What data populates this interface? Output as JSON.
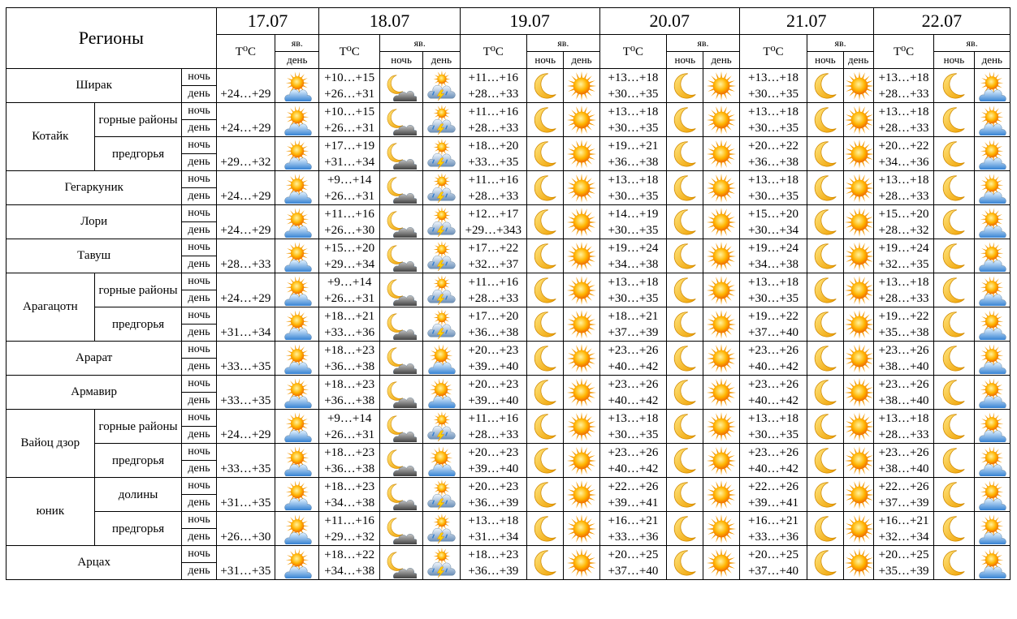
{
  "header": {
    "regions_label": "Регионы",
    "temp_label": "T⁰C",
    "phenomena_label": "яв.",
    "night_label": "ночь",
    "day_label": "день"
  },
  "dates": [
    "17.07",
    "18.07",
    "19.07",
    "20.07",
    "21.07",
    "22.07"
  ],
  "rows": [
    {
      "region": "Ширак",
      "sub": "",
      "day1": {
        "day": "+24…+29",
        "icon": "sun-cloud-icon"
      },
      "days": [
        {
          "night": "+10…+15",
          "day": "+26…+31",
          "night_icon": "moon-cloud-icon",
          "day_icon": "thunderstorm-icon"
        },
        {
          "night": "+11…+16",
          "day": "+28…+33",
          "night_icon": "moon-icon",
          "day_icon": "sun-icon"
        },
        {
          "night": "+13…+18",
          "day": "+30…+35",
          "night_icon": "moon-icon",
          "day_icon": "sun-icon"
        },
        {
          "night": "+13…+18",
          "day": "+30…+35",
          "night_icon": "moon-icon",
          "day_icon": "sun-icon"
        },
        {
          "night": "+13…+18",
          "day": "+28…+33",
          "night_icon": "moon-icon",
          "day_icon": "sun-cloud-icon"
        }
      ]
    },
    {
      "region": "Котайк",
      "sub": "горные районы",
      "day1": {
        "day": "+24…+29",
        "icon": "sun-cloud-icon"
      },
      "days": [
        {
          "night": "+10…+15",
          "day": "+26…+31",
          "night_icon": "moon-cloud-icon",
          "day_icon": "thunderstorm-icon"
        },
        {
          "night": "+11…+16",
          "day": "+28…+33",
          "night_icon": "moon-icon",
          "day_icon": "sun-icon"
        },
        {
          "night": "+13…+18",
          "day": "+30…+35",
          "night_icon": "moon-icon",
          "day_icon": "sun-icon"
        },
        {
          "night": "+13…+18",
          "day": "+30…+35",
          "night_icon": "moon-icon",
          "day_icon": "sun-icon"
        },
        {
          "night": "+13…+18",
          "day": "+28…+33",
          "night_icon": "moon-icon",
          "day_icon": "sun-cloud-icon"
        }
      ]
    },
    {
      "region": "",
      "sub": "предгорья",
      "day1": {
        "day": "+29…+32",
        "icon": "sun-cloud-icon"
      },
      "days": [
        {
          "night": "+17…+19",
          "day": "+31…+34",
          "night_icon": "moon-cloud-icon",
          "day_icon": "thunderstorm-icon"
        },
        {
          "night": "+18…+20",
          "day": "+33…+35",
          "night_icon": "moon-icon",
          "day_icon": "sun-icon"
        },
        {
          "night": "+19…+21",
          "day": "+36…+38",
          "night_icon": "moon-icon",
          "day_icon": "sun-icon"
        },
        {
          "night": "+20…+22",
          "day": "+36…+38",
          "night_icon": "moon-icon",
          "day_icon": "sun-icon"
        },
        {
          "night": "+20…+22",
          "day": "+34…+36",
          "night_icon": "moon-icon",
          "day_icon": "sun-cloud-icon"
        }
      ]
    },
    {
      "region": "Гегаркуник",
      "sub": "",
      "day1": {
        "day": "+24…+29",
        "icon": "sun-cloud-icon"
      },
      "days": [
        {
          "night": "+9…+14",
          "day": "+26…+31",
          "night_icon": "moon-cloud-icon",
          "day_icon": "thunderstorm-icon"
        },
        {
          "night": "+11…+16",
          "day": "+28…+33",
          "night_icon": "moon-icon",
          "day_icon": "sun-icon"
        },
        {
          "night": "+13…+18",
          "day": "+30…+35",
          "night_icon": "moon-icon",
          "day_icon": "sun-icon"
        },
        {
          "night": "+13…+18",
          "day": "+30…+35",
          "night_icon": "moon-icon",
          "day_icon": "sun-icon"
        },
        {
          "night": "+13…+18",
          "day": "+28…+33",
          "night_icon": "moon-icon",
          "day_icon": "sun-cloud-icon"
        }
      ]
    },
    {
      "region": "Лори",
      "sub": "",
      "day1": {
        "day": "+24…+29",
        "icon": "sun-cloud-icon"
      },
      "days": [
        {
          "night": "+11…+16",
          "day": "+26…+30",
          "night_icon": "moon-cloud-icon",
          "day_icon": "thunderstorm-icon"
        },
        {
          "night": "+12…+17",
          "day": "+29…+343",
          "night_icon": "moon-icon",
          "day_icon": "sun-icon"
        },
        {
          "night": "+14…+19",
          "day": "+30…+35",
          "night_icon": "moon-icon",
          "day_icon": "sun-icon"
        },
        {
          "night": "+15…+20",
          "day": "+30…+34",
          "night_icon": "moon-icon",
          "day_icon": "sun-icon"
        },
        {
          "night": "+15…+20",
          "day": "+28…+32",
          "night_icon": "moon-icon",
          "day_icon": "sun-cloud-icon"
        }
      ]
    },
    {
      "region": "Тавуш",
      "sub": "",
      "day1": {
        "day": "+28…+33",
        "icon": "sun-cloud-icon"
      },
      "days": [
        {
          "night": "+15…+20",
          "day": "+29…+34",
          "night_icon": "moon-cloud-icon",
          "day_icon": "thunderstorm-icon"
        },
        {
          "night": "+17…+22",
          "day": "+32…+37",
          "night_icon": "moon-icon",
          "day_icon": "sun-icon"
        },
        {
          "night": "+19…+24",
          "day": "+34…+38",
          "night_icon": "moon-icon",
          "day_icon": "sun-icon"
        },
        {
          "night": "+19…+24",
          "day": "+34…+38",
          "night_icon": "moon-icon",
          "day_icon": "sun-icon"
        },
        {
          "night": "+19…+24",
          "day": "+32…+35",
          "night_icon": "moon-icon",
          "day_icon": "sun-cloud-icon"
        }
      ]
    },
    {
      "region": "Арагацотн",
      "sub": "горные районы",
      "day1": {
        "day": "+24…+29",
        "icon": "sun-cloud-icon"
      },
      "days": [
        {
          "night": "+9…+14",
          "day": "+26…+31",
          "night_icon": "moon-cloud-icon",
          "day_icon": "thunderstorm-icon"
        },
        {
          "night": "+11…+16",
          "day": "+28…+33",
          "night_icon": "moon-icon",
          "day_icon": "sun-icon"
        },
        {
          "night": "+13…+18",
          "day": "+30…+35",
          "night_icon": "moon-icon",
          "day_icon": "sun-icon"
        },
        {
          "night": "+13…+18",
          "day": "+30…+35",
          "night_icon": "moon-icon",
          "day_icon": "sun-icon"
        },
        {
          "night": "+13…+18",
          "day": "+28…+33",
          "night_icon": "moon-icon",
          "day_icon": "sun-cloud-icon"
        }
      ]
    },
    {
      "region": "",
      "sub": "предгорья",
      "day1": {
        "day": "+31…+34",
        "icon": "sun-cloud-icon"
      },
      "days": [
        {
          "night": "+18…+21",
          "day": "+33…+36",
          "night_icon": "moon-cloud-icon",
          "day_icon": "thunderstorm-icon"
        },
        {
          "night": "+17…+20",
          "day": "+36…+38",
          "night_icon": "moon-icon",
          "day_icon": "sun-icon"
        },
        {
          "night": "+18…+21",
          "day": "+37…+39",
          "night_icon": "moon-icon",
          "day_icon": "sun-icon"
        },
        {
          "night": "+19…+22",
          "day": "+37…+40",
          "night_icon": "moon-icon",
          "day_icon": "sun-icon"
        },
        {
          "night": "+19…+22",
          "day": "+35…+38",
          "night_icon": "moon-icon",
          "day_icon": "sun-cloud-icon"
        }
      ]
    },
    {
      "region": "Арарат",
      "sub": "",
      "day1": {
        "day": "+33…+35",
        "icon": "sun-cloud-icon"
      },
      "days": [
        {
          "night": "+18…+23",
          "day": "+36…+38",
          "night_icon": "moon-cloud-icon",
          "day_icon": "sun-cloud-icon"
        },
        {
          "night": "+20…+23",
          "day": "+39…+40",
          "night_icon": "moon-icon",
          "day_icon": "sun-icon"
        },
        {
          "night": "+23…+26",
          "day": "+40…+42",
          "night_icon": "moon-icon",
          "day_icon": "sun-icon"
        },
        {
          "night": "+23…+26",
          "day": "+40…+42",
          "night_icon": "moon-icon",
          "day_icon": "sun-icon"
        },
        {
          "night": "+23…+26",
          "day": "+38…+40",
          "night_icon": "moon-icon",
          "day_icon": "sun-cloud-icon"
        }
      ]
    },
    {
      "region": "Армавир",
      "sub": "",
      "day1": {
        "day": "+33…+35",
        "icon": "sun-cloud-icon"
      },
      "days": [
        {
          "night": "+18…+23",
          "day": "+36…+38",
          "night_icon": "moon-cloud-icon",
          "day_icon": "sun-cloud-icon"
        },
        {
          "night": "+20…+23",
          "day": "+39…+40",
          "night_icon": "moon-icon",
          "day_icon": "sun-icon"
        },
        {
          "night": "+23…+26",
          "day": "+40…+42",
          "night_icon": "moon-icon",
          "day_icon": "sun-icon"
        },
        {
          "night": "+23…+26",
          "day": "+40…+42",
          "night_icon": "moon-icon",
          "day_icon": "sun-icon"
        },
        {
          "night": "+23…+26",
          "day": "+38…+40",
          "night_icon": "moon-icon",
          "day_icon": "sun-cloud-icon"
        }
      ]
    },
    {
      "region": "Вайоц дзор",
      "sub": "горные районы",
      "day1": {
        "day": "+24…+29",
        "icon": "sun-cloud-icon"
      },
      "days": [
        {
          "night": "+9…+14",
          "day": "+26…+31",
          "night_icon": "moon-cloud-icon",
          "day_icon": "thunderstorm-icon"
        },
        {
          "night": "+11…+16",
          "day": "+28…+33",
          "night_icon": "moon-icon",
          "day_icon": "sun-icon"
        },
        {
          "night": "+13…+18",
          "day": "+30…+35",
          "night_icon": "moon-icon",
          "day_icon": "sun-icon"
        },
        {
          "night": "+13…+18",
          "day": "+30…+35",
          "night_icon": "moon-icon",
          "day_icon": "sun-icon"
        },
        {
          "night": "+13…+18",
          "day": "+28…+33",
          "night_icon": "moon-icon",
          "day_icon": "sun-cloud-icon"
        }
      ]
    },
    {
      "region": "",
      "sub": "предгорья",
      "day1": {
        "day": "+33…+35",
        "icon": "sun-cloud-icon"
      },
      "days": [
        {
          "night": "+18…+23",
          "day": "+36…+38",
          "night_icon": "moon-cloud-icon",
          "day_icon": "sun-cloud-icon"
        },
        {
          "night": "+20…+23",
          "day": "+39…+40",
          "night_icon": "moon-icon",
          "day_icon": "sun-icon"
        },
        {
          "night": "+23…+26",
          "day": "+40…+42",
          "night_icon": "moon-icon",
          "day_icon": "sun-icon"
        },
        {
          "night": "+23…+26",
          "day": "+40…+42",
          "night_icon": "moon-icon",
          "day_icon": "sun-icon"
        },
        {
          "night": "+23…+26",
          "day": "+38…+40",
          "night_icon": "moon-icon",
          "day_icon": "sun-cloud-icon"
        }
      ]
    },
    {
      "region": "юник",
      "sub": "долины",
      "day1": {
        "day": "+31…+35",
        "icon": "sun-cloud-icon"
      },
      "days": [
        {
          "night": "+18…+23",
          "day": "+34…+38",
          "night_icon": "moon-cloud-icon",
          "day_icon": "thunderstorm-icon"
        },
        {
          "night": "+20…+23",
          "day": "+36…+39",
          "night_icon": "moon-icon",
          "day_icon": "sun-icon"
        },
        {
          "night": "+22…+26",
          "day": "+39…+41",
          "night_icon": "moon-icon",
          "day_icon": "sun-icon"
        },
        {
          "night": "+22…+26",
          "day": "+39…+41",
          "night_icon": "moon-icon",
          "day_icon": "sun-icon"
        },
        {
          "night": "+22…+26",
          "day": "+37…+39",
          "night_icon": "moon-icon",
          "day_icon": "sun-cloud-icon"
        }
      ]
    },
    {
      "region": "",
      "sub": "предгорья",
      "day1": {
        "day": "+26…+30",
        "icon": "sun-cloud-icon"
      },
      "days": [
        {
          "night": "+11…+16",
          "day": "+29…+32",
          "night_icon": "moon-cloud-icon",
          "day_icon": "thunderstorm-icon"
        },
        {
          "night": "+13…+18",
          "day": "+31…+34",
          "night_icon": "moon-icon",
          "day_icon": "sun-icon"
        },
        {
          "night": "+16…+21",
          "day": "+33…+36",
          "night_icon": "moon-icon",
          "day_icon": "sun-icon"
        },
        {
          "night": "+16…+21",
          "day": "+33…+36",
          "night_icon": "moon-icon",
          "day_icon": "sun-icon"
        },
        {
          "night": "+16…+21",
          "day": "+32…+34",
          "night_icon": "moon-icon",
          "day_icon": "sun-cloud-icon"
        }
      ]
    },
    {
      "region": "Арцах",
      "sub": "",
      "day1": {
        "day": "+31…+35",
        "icon": "sun-cloud-icon"
      },
      "days": [
        {
          "night": "+18…+22",
          "day": "+34…+38",
          "night_icon": "moon-cloud-icon",
          "day_icon": "thunderstorm-icon"
        },
        {
          "night": "+18…+23",
          "day": "+36…+39",
          "night_icon": "moon-icon",
          "day_icon": "sun-icon"
        },
        {
          "night": "+20…+25",
          "day": "+37…+40",
          "night_icon": "moon-icon",
          "day_icon": "sun-icon"
        },
        {
          "night": "+20…+25",
          "day": "+37…+40",
          "night_icon": "moon-icon",
          "day_icon": "sun-icon"
        },
        {
          "night": "+20…+25",
          "day": "+35…+39",
          "night_icon": "moon-icon",
          "day_icon": "sun-cloud-icon"
        }
      ]
    }
  ]
}
